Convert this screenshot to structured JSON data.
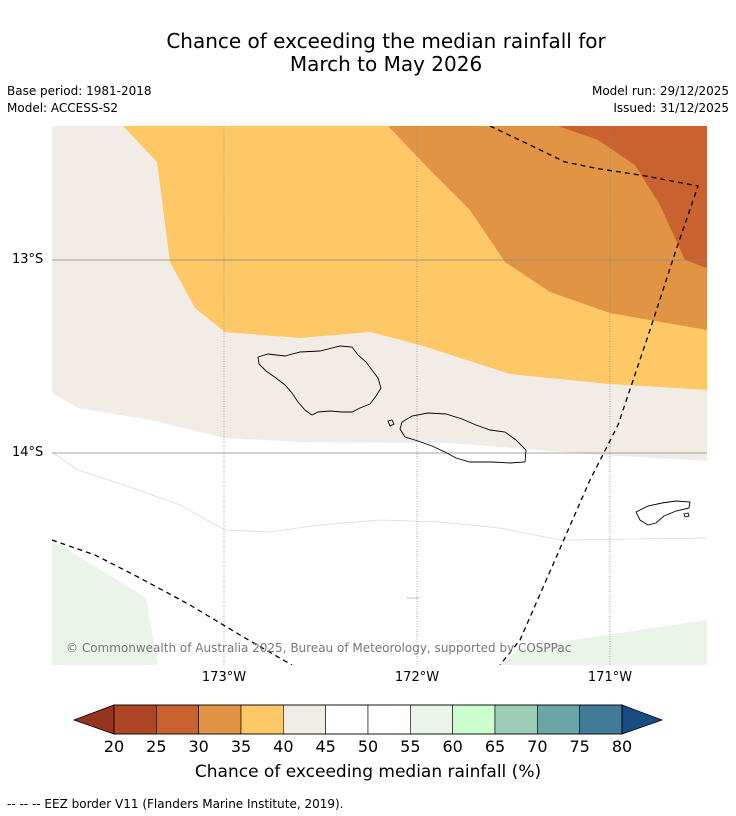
{
  "title": {
    "line1": "Chance of exceeding the median rainfall for",
    "line2": "March to May 2026"
  },
  "meta": {
    "base_period": "Base period: 1981-2018",
    "model": "Model: ACCESS-S2",
    "model_run": "Model run: 29/12/2025",
    "issued": "Issued: 31/12/2025"
  },
  "map": {
    "lat_labels": [
      "13°S",
      "14°S"
    ],
    "lon_labels": [
      "173°W",
      "172°W",
      "171°W"
    ],
    "copyright": "© Commonwealth of Australia 2025, Bureau of Meteorology, supported by COSPPac",
    "zone_colors": {
      "p25_30": "#c9622e",
      "p30_35": "#e09444",
      "p35_40": "#fdc865",
      "p40_45": "#f1ece6",
      "p45_55": "#ffffff",
      "p55_60": "#eaf4e8"
    }
  },
  "colorbar": {
    "title": "Chance of exceeding median rainfall (%)",
    "ticks": [
      "20",
      "25",
      "30",
      "35",
      "40",
      "45",
      "50",
      "55",
      "60",
      "65",
      "70",
      "75",
      "80"
    ],
    "low_extend_color": "#97341e",
    "high_extend_color": "#184d84",
    "colors": [
      "#b04525",
      "#c9622e",
      "#e09444",
      "#fdc865",
      "#f1ece6",
      "#ffffff",
      "#ffffff",
      "#eaf4e8",
      "#ccfdcc",
      "#9ccdb6",
      "#6ba5a5",
      "#427b9a"
    ]
  },
  "legend_note": "-- -- -- EEZ border V11 (Flanders Marine Institute, 2019)."
}
